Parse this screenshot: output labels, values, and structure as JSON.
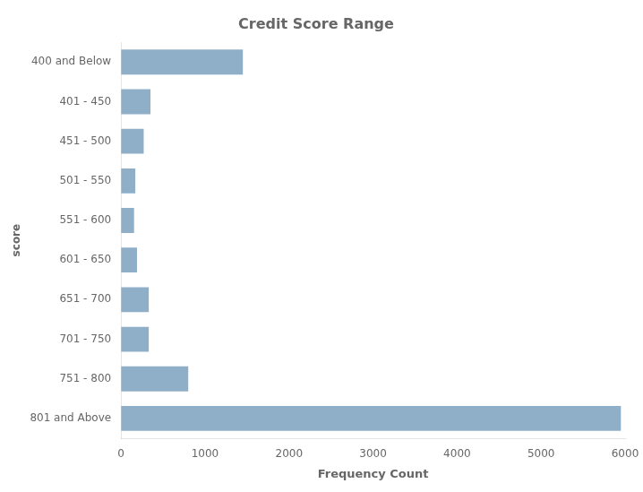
{
  "chart_data": {
    "type": "bar",
    "orientation": "horizontal",
    "title": "Credit Score Range",
    "xlabel": "Frequency Count",
    "ylabel": "score",
    "categories": [
      "400 and Below",
      "401 - 450",
      "451 - 500",
      "501 - 550",
      "551 - 600",
      "601 - 650",
      "651 - 700",
      "701 - 750",
      "751 - 800",
      "801 and Above"
    ],
    "values": [
      1450,
      350,
      270,
      170,
      155,
      190,
      330,
      330,
      800,
      5950
    ],
    "color": "#8fafc8",
    "xlim": [
      0,
      6000
    ],
    "xticks": [
      0,
      1000,
      2000,
      3000,
      4000,
      5000,
      6000
    ],
    "grid": false
  }
}
